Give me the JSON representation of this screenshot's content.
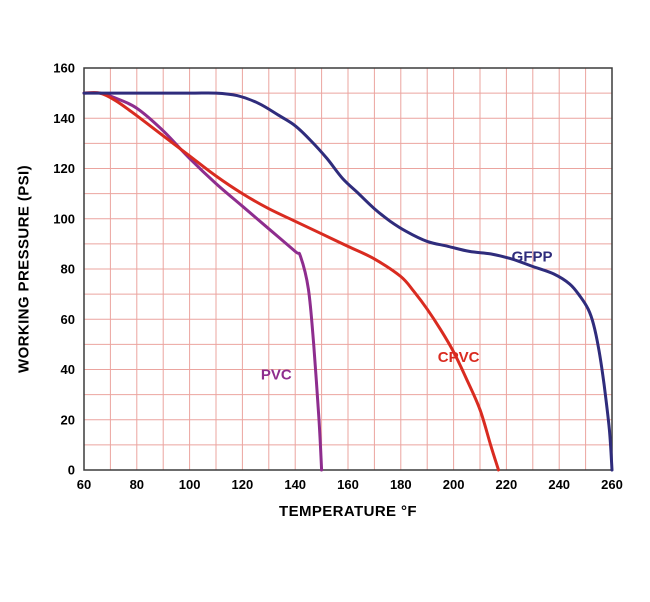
{
  "chart_data": {
    "type": "line",
    "title": "",
    "xlabel": "TEMPERATURE °F",
    "ylabel": "WORKING PRESSURE (PSI)",
    "xlim": [
      60,
      260
    ],
    "ylim": [
      0,
      160
    ],
    "x_ticks": [
      60,
      80,
      100,
      120,
      140,
      160,
      180,
      200,
      220,
      240,
      260
    ],
    "y_ticks": [
      0,
      20,
      40,
      60,
      80,
      100,
      120,
      140,
      160
    ],
    "minor_grid_step_x": 10,
    "minor_grid_step_y": 10,
    "grid_on": true,
    "grid_color": "#eba49f",
    "plot_border_color": "#3b3b3b",
    "background_color": "#ffffff",
    "legend_position": "inline-labels",
    "series": [
      {
        "name": "PVC",
        "color": "#8e2d8e",
        "label_pos": {
          "x": 127,
          "y": 36
        },
        "points": [
          [
            60,
            150
          ],
          [
            66,
            150
          ],
          [
            72,
            148
          ],
          [
            80,
            144
          ],
          [
            90,
            135
          ],
          [
            100,
            124
          ],
          [
            110,
            114
          ],
          [
            120,
            105
          ],
          [
            130,
            96
          ],
          [
            140,
            87
          ],
          [
            142,
            85
          ],
          [
            145,
            72
          ],
          [
            147,
            50
          ],
          [
            149,
            20
          ],
          [
            150,
            0
          ]
        ]
      },
      {
        "name": "CPVC",
        "color": "#d92b20",
        "label_pos": {
          "x": 194,
          "y": 43
        },
        "points": [
          [
            60,
            150
          ],
          [
            66,
            150
          ],
          [
            72,
            147
          ],
          [
            80,
            141
          ],
          [
            90,
            133
          ],
          [
            100,
            125
          ],
          [
            110,
            117
          ],
          [
            120,
            110
          ],
          [
            130,
            104
          ],
          [
            140,
            99
          ],
          [
            150,
            94
          ],
          [
            160,
            89
          ],
          [
            170,
            84
          ],
          [
            180,
            77
          ],
          [
            185,
            71
          ],
          [
            190,
            64
          ],
          [
            195,
            56
          ],
          [
            200,
            47
          ],
          [
            205,
            36
          ],
          [
            210,
            24
          ],
          [
            214,
            10
          ],
          [
            217,
            0
          ]
        ]
      },
      {
        "name": "GFPP",
        "color": "#2f2c7c",
        "label_pos": {
          "x": 222,
          "y": 83
        },
        "points": [
          [
            60,
            150
          ],
          [
            80,
            150
          ],
          [
            100,
            150
          ],
          [
            110,
            150
          ],
          [
            118,
            149
          ],
          [
            126,
            146
          ],
          [
            134,
            141
          ],
          [
            140,
            137
          ],
          [
            146,
            131
          ],
          [
            152,
            124
          ],
          [
            158,
            116
          ],
          [
            164,
            110
          ],
          [
            170,
            104
          ],
          [
            176,
            99
          ],
          [
            182,
            95
          ],
          [
            190,
            91
          ],
          [
            198,
            89
          ],
          [
            206,
            87
          ],
          [
            214,
            86
          ],
          [
            222,
            84
          ],
          [
            230,
            81
          ],
          [
            238,
            78
          ],
          [
            244,
            74
          ],
          [
            248,
            69
          ],
          [
            251,
            64
          ],
          [
            253,
            58
          ],
          [
            255,
            48
          ],
          [
            257,
            34
          ],
          [
            259,
            16
          ],
          [
            260,
            0
          ]
        ]
      }
    ]
  }
}
